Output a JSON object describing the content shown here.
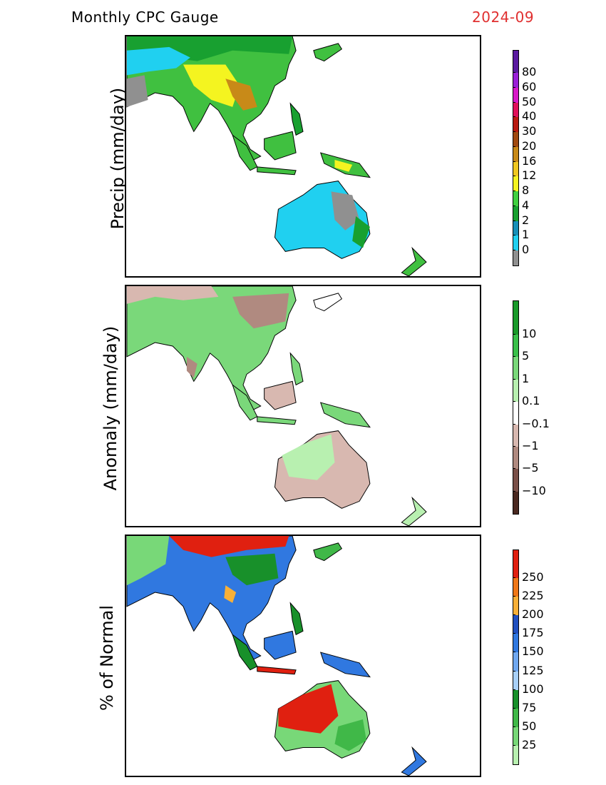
{
  "header": {
    "title": "Monthly CPC Gauge",
    "date": "2024-09"
  },
  "panels": [
    {
      "id": "precip",
      "ylabel": "Precip (mm/day)",
      "colorbar": [
        {
          "label": "80",
          "color": "#5a1aa0"
        },
        {
          "label": "60",
          "color": "#9a20d8"
        },
        {
          "label": "50",
          "color": "#d818c8"
        },
        {
          "label": "40",
          "color": "#e0105a"
        },
        {
          "label": "30",
          "color": "#b81a10"
        },
        {
          "label": "20",
          "color": "#a04a10"
        },
        {
          "label": "16",
          "color": "#c88a18"
        },
        {
          "label": "12",
          "color": "#f0c820"
        },
        {
          "label": "8",
          "color": "#f4f420"
        },
        {
          "label": "4",
          "color": "#40d040"
        },
        {
          "label": "2",
          "color": "#18a030"
        },
        {
          "label": "1",
          "color": "#1890b8"
        },
        {
          "label": "0",
          "color": "#20d0f0"
        }
      ],
      "nodata_color": "#909090"
    },
    {
      "id": "anomaly",
      "ylabel": "Anomaly (mm/day)",
      "colorbar": [
        {
          "label": "10",
          "color": "#1a9a2a"
        },
        {
          "label": "5",
          "color": "#3ac04a"
        },
        {
          "label": "1",
          "color": "#7ad87a"
        },
        {
          "label": "0.1",
          "color": "#b8f0b0"
        },
        {
          "label": "−0.1",
          "color": "#ffffff"
        },
        {
          "label": "−1",
          "color": "#d8b8b0"
        },
        {
          "label": "−5",
          "color": "#b08a80"
        },
        {
          "label": "−10",
          "color": "#7a5048"
        }
      ],
      "bottom_color": "#4a2820"
    },
    {
      "id": "percent",
      "ylabel": "% of Normal",
      "colorbar": [
        {
          "label": "250",
          "color": "#e02010"
        },
        {
          "label": "225",
          "color": "#f07818"
        },
        {
          "label": "200",
          "color": "#f8b038"
        },
        {
          "label": "175",
          "color": "#2050c0"
        },
        {
          "label": "150",
          "color": "#3078e0"
        },
        {
          "label": "125",
          "color": "#70a8f0"
        },
        {
          "label": "100",
          "color": "#a8d0f8"
        },
        {
          "label": "75",
          "color": "#18902a"
        },
        {
          "label": "50",
          "color": "#40b848"
        },
        {
          "label": "25",
          "color": "#78d878"
        }
      ],
      "bottom_color": "#b8f0b0"
    }
  ]
}
